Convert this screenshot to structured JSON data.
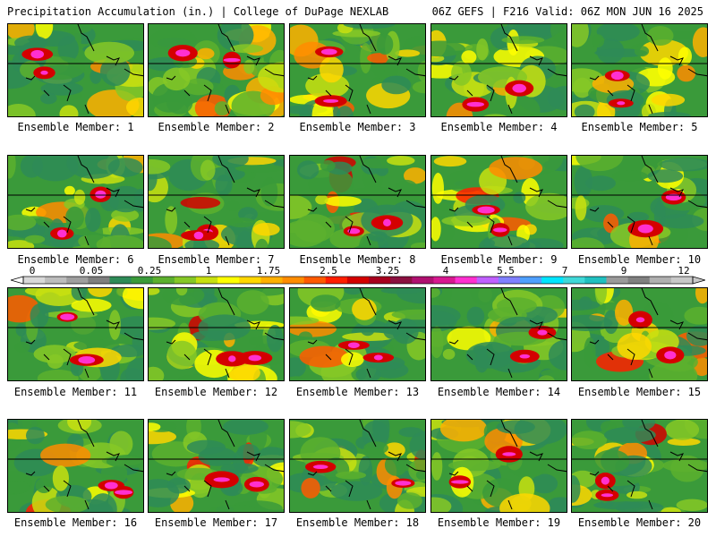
{
  "header": {
    "left": "Precipitation Accumulation (in.) | College of DuPage NEXLAB",
    "right": "06Z GEFS | F216 Valid: 06Z MON JUN 16 2025"
  },
  "legend": {
    "ticks": [
      "0",
      "0.05",
      "0.25",
      "1",
      "1.75",
      "2.5",
      "3.25",
      "4",
      "5.5",
      "7",
      "9",
      "12"
    ],
    "colors": [
      "#d9d9d9",
      "#bdbdbd",
      "#9f9f9f",
      "#7f7f7f",
      "#2e8b57",
      "#3a9a3a",
      "#5cb02e",
      "#86c826",
      "#c8e010",
      "#ffff00",
      "#ffd700",
      "#ffb000",
      "#ff8c00",
      "#ff5a00",
      "#ff1e00",
      "#d40000",
      "#a8001e",
      "#8b1040",
      "#b01070",
      "#d81890",
      "#ff30d0",
      "#c060ff",
      "#8080ff",
      "#4fa0ff",
      "#00e5ff",
      "#40d8d8",
      "#20c0c0",
      "#9a9a9a",
      "#808080",
      "#b0b0b0",
      "#c8c8c8"
    ]
  },
  "members": [
    {
      "label": "Ensemble Member: 1"
    },
    {
      "label": "Ensemble Member: 2"
    },
    {
      "label": "Ensemble Member: 3"
    },
    {
      "label": "Ensemble Member: 4"
    },
    {
      "label": "Ensemble Member: 5"
    },
    {
      "label": "Ensemble Member: 6"
    },
    {
      "label": "Ensemble Member: 7"
    },
    {
      "label": "Ensemble Member: 8"
    },
    {
      "label": "Ensemble Member: 9"
    },
    {
      "label": "Ensemble Member: 10"
    },
    {
      "label": "Ensemble Member: 11"
    },
    {
      "label": "Ensemble Member: 12"
    },
    {
      "label": "Ensemble Member: 13"
    },
    {
      "label": "Ensemble Member: 14"
    },
    {
      "label": "Ensemble Member: 15"
    },
    {
      "label": "Ensemble Member: 16"
    },
    {
      "label": "Ensemble Member: 17"
    },
    {
      "label": "Ensemble Member: 18"
    },
    {
      "label": "Ensemble Member: 19"
    },
    {
      "label": "Ensemble Member: 20"
    }
  ]
}
